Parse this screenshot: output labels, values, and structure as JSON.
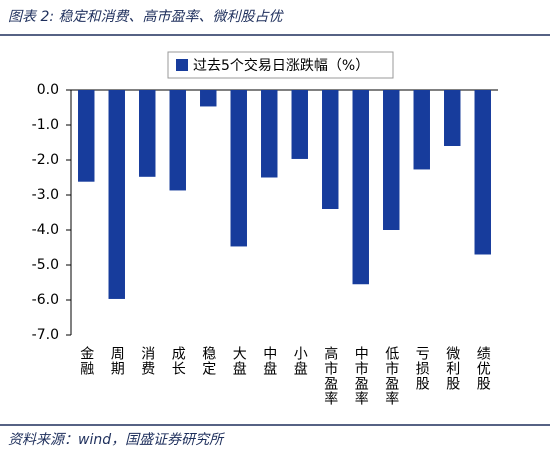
{
  "chart_data": {
    "type": "bar",
    "title": "图表 2:  稳定和消费、高市盈率、微利股占优",
    "source": "资料来源：wind，国盛证券研究所",
    "categories": [
      "金融",
      "周期",
      "消费",
      "成长",
      "稳定",
      "大盘",
      "中盘",
      "小盘",
      "高市盈率",
      "中市盈率",
      "低市盈率",
      "亏损股",
      "微利股",
      "绩优股"
    ],
    "series": [
      {
        "name": "过去5个交易日涨跌幅（%）",
        "color": "#173c9c",
        "values": [
          -2.62,
          -5.97,
          -2.48,
          -2.87,
          -0.47,
          -4.47,
          -2.5,
          -1.97,
          -3.4,
          -5.55,
          -4.0,
          -2.27,
          -1.6,
          -4.7
        ]
      }
    ],
    "ylim": [
      -7,
      0
    ],
    "yticks": [
      {
        "value": 0,
        "label": "0.0"
      },
      {
        "value": -1,
        "label": "-1.0"
      },
      {
        "value": -2,
        "label": "-2.0"
      },
      {
        "value": -3,
        "label": "-3.0"
      },
      {
        "value": -4,
        "label": "-4.0"
      },
      {
        "value": -5,
        "label": "-5.0"
      },
      {
        "value": -6,
        "label": "-6.0"
      },
      {
        "value": -7,
        "label": "-7.0"
      }
    ],
    "grid": false
  }
}
